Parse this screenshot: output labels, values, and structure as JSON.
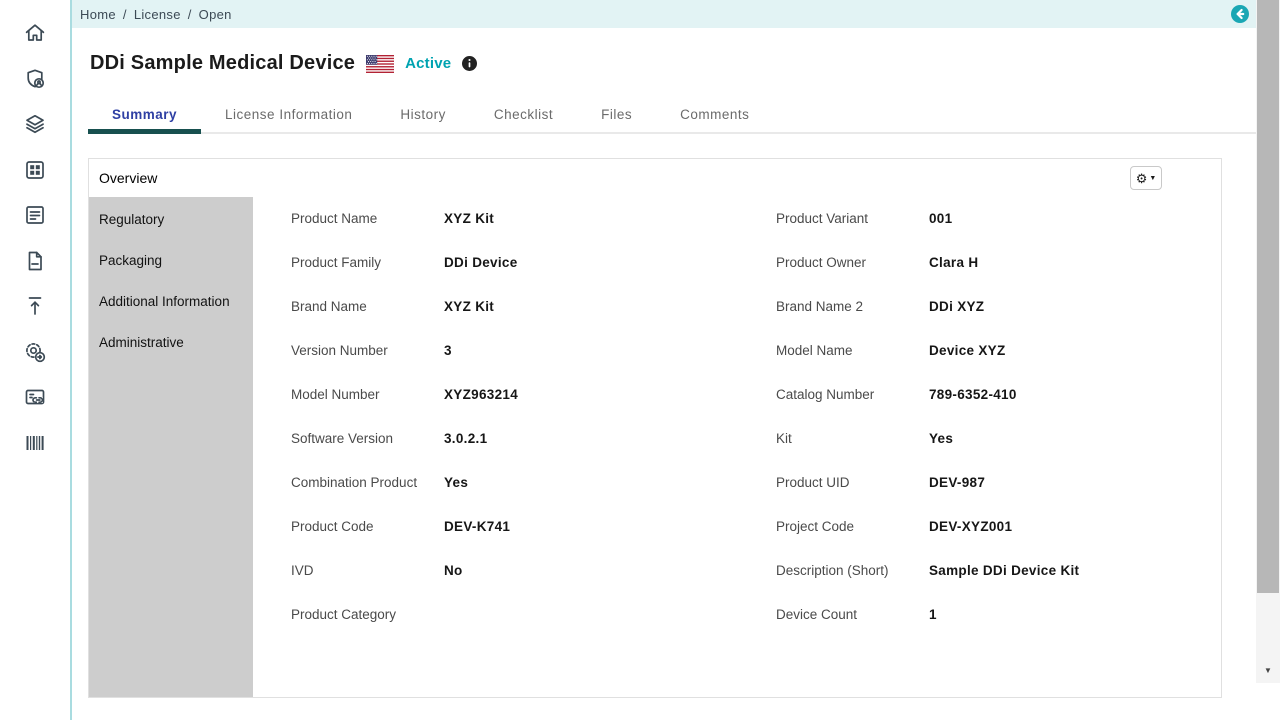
{
  "colors": {
    "accent_teal": "#00a3b1",
    "back_button_teal": "#1aa7b4",
    "breadcrumb_bg": "#e2f3f4",
    "tab_active_text": "#2e3fa3",
    "tab_underline": "#17504f",
    "subnav_bg": "#cdcdcd"
  },
  "breadcrumb": {
    "items": [
      "Home",
      "License",
      "Open"
    ],
    "separator": "/"
  },
  "header": {
    "title": "DDi Sample Medical Device",
    "flag": "us-flag-icon",
    "status": "Active"
  },
  "tabs": [
    {
      "label": "Summary",
      "active": true
    },
    {
      "label": "License Information",
      "active": false
    },
    {
      "label": "History",
      "active": false
    },
    {
      "label": "Checklist",
      "active": false
    },
    {
      "label": "Files",
      "active": false
    },
    {
      "label": "Comments",
      "active": false
    }
  ],
  "panel": {
    "title": "Overview"
  },
  "subnav": [
    "Regulatory",
    "Packaging",
    "Additional Information",
    "Administrative"
  ],
  "field_rows": [
    {
      "left": {
        "label": "Product Name",
        "value": "XYZ Kit"
      },
      "right": {
        "label": "Product Variant",
        "value": "001"
      }
    },
    {
      "left": {
        "label": "Product Family",
        "value": "DDi Device"
      },
      "right": {
        "label": "Product Owner",
        "value": "Clara H"
      }
    },
    {
      "left": {
        "label": "Brand Name",
        "value": "XYZ Kit"
      },
      "right": {
        "label": "Brand Name 2",
        "value": "DDi XYZ"
      }
    },
    {
      "left": {
        "label": "Version Number",
        "value": "3"
      },
      "right": {
        "label": "Model Name",
        "value": "Device XYZ"
      }
    },
    {
      "left": {
        "label": "Model Number",
        "value": "XYZ963214"
      },
      "right": {
        "label": "Catalog Number",
        "value": "789-6352-410"
      }
    },
    {
      "left": {
        "label": "Software Version",
        "value": "3.0.2.1"
      },
      "right": {
        "label": "Kit",
        "value": "Yes"
      }
    },
    {
      "left": {
        "label": "Combination Product",
        "value": "Yes"
      },
      "right": {
        "label": "Product UID",
        "value": "DEV-987"
      }
    },
    {
      "left": {
        "label": "Product Code",
        "value": "DEV-K741"
      },
      "right": {
        "label": "Project Code",
        "value": "DEV-XYZ001"
      }
    },
    {
      "left": {
        "label": "IVD",
        "value": "No"
      },
      "right": {
        "label": "Description (Short)",
        "value": "Sample DDi Device Kit"
      }
    },
    {
      "left": {
        "label": "Product Category",
        "value": ""
      },
      "right": {
        "label": "Device Count",
        "value": "1"
      }
    }
  ],
  "sidebar": {
    "icons": [
      "home-icon",
      "shield-user-icon",
      "layers-icon",
      "grid-icon",
      "form-icon",
      "document-icon",
      "upload-icon",
      "gear-sync-icon",
      "card-link-icon",
      "barcode-icon"
    ]
  },
  "icons": {
    "gear": "⚙",
    "caret_down": "▼",
    "scroll_down": "▼"
  }
}
